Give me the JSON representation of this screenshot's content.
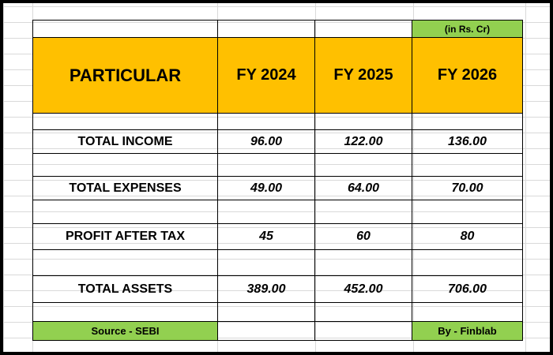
{
  "sheet": {
    "unit_note": "(in Rs. Cr)",
    "header": {
      "particular": "PARTICULAR",
      "years": [
        "FY 2024",
        "FY 2025",
        "FY 2026"
      ]
    },
    "rows": [
      {
        "label": "TOTAL INCOME",
        "values": [
          "96.00",
          "122.00",
          "136.00"
        ]
      },
      {
        "label": "TOTAL EXPENSES",
        "values": [
          "49.00",
          "64.00",
          "70.00"
        ]
      },
      {
        "label": "PROFIT AFTER TAX",
        "values": [
          "45",
          "60",
          "80"
        ]
      },
      {
        "label": "TOTAL ASSETS",
        "values": [
          "389.00",
          "452.00",
          "706.00"
        ]
      }
    ],
    "footer": {
      "source": "Source - SEBI",
      "credit": "By - Finblab"
    },
    "colors": {
      "header_fill": "#ffc000",
      "green_fill": "#92d050",
      "border": "#000000"
    }
  }
}
